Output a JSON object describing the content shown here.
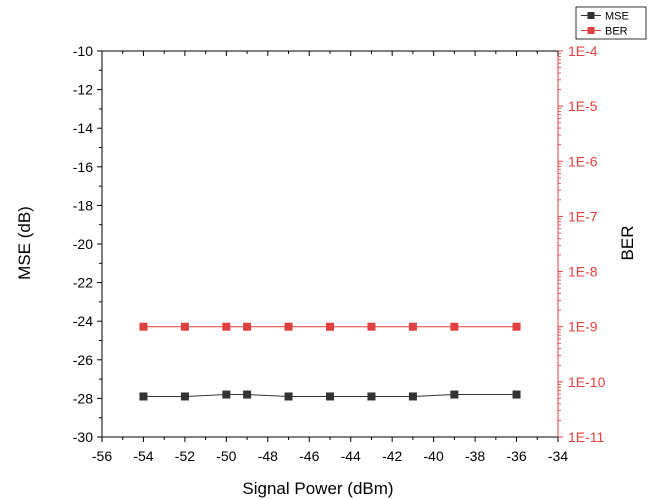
{
  "chart_data": {
    "type": "line",
    "title": "",
    "xlabel": "Signal Power (dBm)",
    "ylabel_left": "MSE (dB)",
    "ylabel_right": "BER",
    "xlim": [
      -56,
      -34
    ],
    "ylim_left": [
      -30,
      -10
    ],
    "ylim_right_log10": [
      -11,
      -4
    ],
    "x_ticks": [
      -56,
      -54,
      -52,
      -50,
      -48,
      -46,
      -44,
      -42,
      -40,
      -38,
      -36,
      -34
    ],
    "x_tick_labels": [
      "-56",
      "-54",
      "-52",
      "-50",
      "-48",
      "-46",
      "-44",
      "-42",
      "-40",
      "-38",
      "-36",
      "-34"
    ],
    "y_left_ticks": [
      -30,
      -28,
      -26,
      -24,
      -22,
      -20,
      -18,
      -16,
      -14,
      -12,
      -10
    ],
    "y_left_tick_labels": [
      "-30",
      "-28",
      "-26",
      "-24",
      "-22",
      "-20",
      "-18",
      "-16",
      "-14",
      "-12",
      "-10"
    ],
    "y_right_tick_exponents": [
      -11,
      -10,
      -9,
      -8,
      -7,
      -6,
      -5,
      -4
    ],
    "y_right_tick_labels": [
      "1E-11",
      "1E-10",
      "1E-9",
      "1E-8",
      "1E-7",
      "1E-6",
      "1E-5",
      "1E-4"
    ],
    "legend_placement": "top-right, outside plot",
    "grid": false,
    "x": [
      -54,
      -52,
      -50,
      -49,
      -47,
      -45,
      -43,
      -41,
      -39,
      -36
    ],
    "series": [
      {
        "name": "MSE",
        "axis": "left",
        "color": "#333333",
        "marker": "square",
        "values": [
          -27.9,
          -27.9,
          -27.8,
          -27.8,
          -27.9,
          -27.9,
          -27.9,
          -27.9,
          -27.8,
          -27.8
        ]
      },
      {
        "name": "BER",
        "axis": "right",
        "scale": "log",
        "color": "#e04040",
        "marker": "square",
        "values": [
          1e-09,
          1e-09,
          1e-09,
          1e-09,
          1e-09,
          1e-09,
          1e-09,
          1e-09,
          1e-09,
          1e-09
        ]
      }
    ]
  },
  "colors": {
    "axis": "#000000",
    "left_series": "#333333",
    "right_series": "#e04040"
  }
}
